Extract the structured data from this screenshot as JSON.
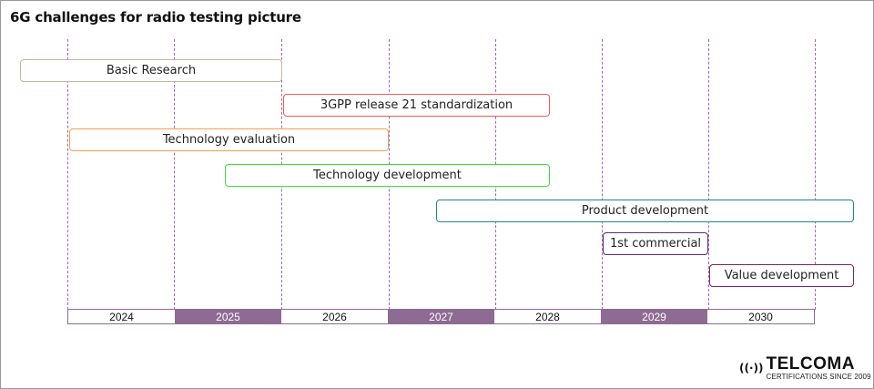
{
  "title": "6G challenges for radio testing picture",
  "tasks": [
    {
      "label": "Basic Research",
      "color": "#c9b59c"
    },
    {
      "label": "3GPP release 21 standardization",
      "color": "#ef5a5a"
    },
    {
      "label": "Technology evaluation",
      "color": "#f4a04e"
    },
    {
      "label": "Technology development",
      "color": "#3ddc3d"
    },
    {
      "label": "Product development",
      "color": "#1f8a7c"
    },
    {
      "label": "1st commercial",
      "color": "#5b2a7d"
    },
    {
      "label": "Value development",
      "color": "#7c2a5c"
    }
  ],
  "years": [
    "2024",
    "2025",
    "2026",
    "2027",
    "2028",
    "2029",
    "2030"
  ],
  "colors": {
    "year_alt": "#8e6b93",
    "gridline": "#9b6bb0"
  },
  "logo": {
    "brand": "TELCOMA",
    "tagline": "CERTIFICATIONS SINCE 2009",
    "icon": "broadcast-icon"
  }
}
